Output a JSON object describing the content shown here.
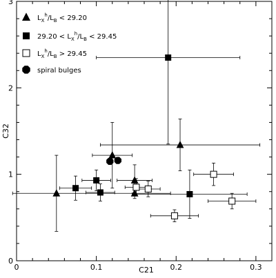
{
  "chart_data": {
    "type": "scatter",
    "title": "",
    "xlabel": "C21",
    "ylabel": "C32",
    "xlim": [
      0,
      0.32
    ],
    "ylim": [
      0,
      3
    ],
    "x_ticks": [
      0,
      0.1,
      0.2,
      0.3
    ],
    "x_tick_labels": [
      "0",
      "0.1",
      "0.2",
      "0.3"
    ],
    "y_ticks": [
      0,
      1,
      2,
      3
    ],
    "y_tick_labels": [
      "0",
      "1",
      "2",
      "3"
    ],
    "grid": false,
    "legend_position": "top-left",
    "series": [
      {
        "name": "L_X^h/L_B < 29.20",
        "marker": "filled-triangle",
        "legend_parts": [
          "L",
          "X",
          "h",
          "/L",
          "B",
          " < 29.20"
        ],
        "points": [
          {
            "x": 0.05,
            "y": 0.78,
            "xerr": 0.055,
            "yerr": 0.44
          },
          {
            "x": 0.12,
            "y": 1.22,
            "xerr": 0.025,
            "yerr": 0.38
          },
          {
            "x": 0.148,
            "y": 0.93,
            "xerr": 0.022,
            "yerr": 0.18
          },
          {
            "x": 0.148,
            "y": 0.78,
            "xerr": 0.045,
            "yerr": 0.06
          },
          {
            "x": 0.205,
            "y": 1.34,
            "xerr": 0.1,
            "yerr": 0.3
          }
        ]
      },
      {
        "name": "29.20 < L_X^h/L_B < 29.45",
        "marker": "filled-square",
        "legend_parts": [
          "29.20 < L",
          "X",
          "h",
          "/L",
          "B",
          " < 29.45"
        ],
        "points": [
          {
            "x": 0.074,
            "y": 0.84,
            "xerr": 0.02,
            "yerr": 0.14
          },
          {
            "x": 0.1,
            "y": 0.93,
            "xerr": 0.018,
            "yerr": 0.12
          },
          {
            "x": 0.105,
            "y": 0.79,
            "xerr": 0.018,
            "yerr": 0.1
          },
          {
            "x": 0.19,
            "y": 2.35,
            "xerr": 0.09,
            "yerr": 1.0
          },
          {
            "x": 0.217,
            "y": 0.77,
            "xerr": 0.072,
            "yerr": 0.28
          }
        ]
      },
      {
        "name": "L_X^h/L_B > 29.45",
        "marker": "open-square",
        "legend_parts": [
          "L",
          "X",
          "h",
          "/L",
          "B",
          " > 29.45"
        ],
        "points": [
          {
            "x": 0.15,
            "y": 0.85,
            "xerr": 0.014,
            "yerr": 0.1
          },
          {
            "x": 0.165,
            "y": 0.83,
            "xerr": 0.015,
            "yerr": 0.09
          },
          {
            "x": 0.198,
            "y": 0.52,
            "xerr": 0.03,
            "yerr": 0.07
          },
          {
            "x": 0.247,
            "y": 1.0,
            "xerr": 0.025,
            "yerr": 0.13
          },
          {
            "x": 0.27,
            "y": 0.69,
            "xerr": 0.03,
            "yerr": 0.09
          }
        ]
      },
      {
        "name": "spiral bulges",
        "marker": "filled-octagon",
        "legend_parts": [
          "spiral bulges"
        ],
        "points": [
          {
            "x": 0.117,
            "y": 1.15,
            "xerr": 0,
            "yerr": 0
          },
          {
            "x": 0.127,
            "y": 1.16,
            "xerr": 0,
            "yerr": 0
          }
        ]
      }
    ]
  }
}
